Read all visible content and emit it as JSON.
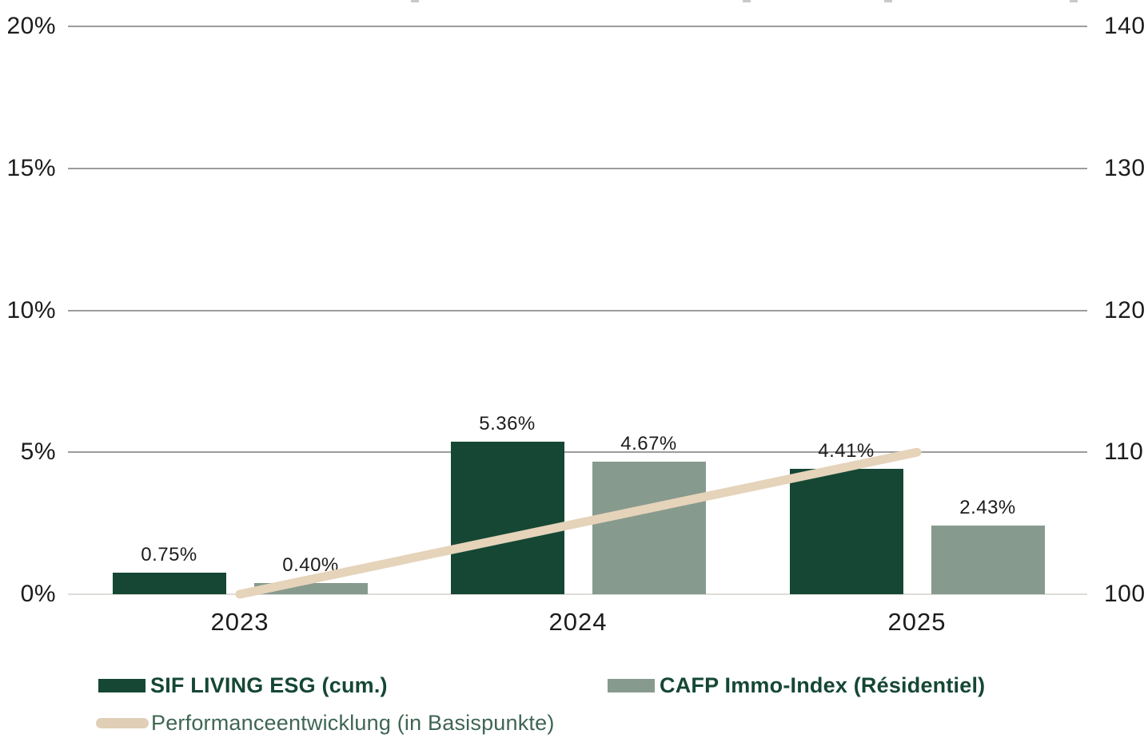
{
  "chart_data": {
    "type": "combo",
    "categories": [
      "2023",
      "2024",
      "2025"
    ],
    "series": [
      {
        "name": "SIF LIVING ESG (cum.)",
        "type": "bar",
        "axis": "left",
        "color": "#154734",
        "values": [
          0.75,
          5.36,
          4.41
        ],
        "labels": [
          "0.75%",
          "5.36%",
          "4.41%"
        ]
      },
      {
        "name": "CAFP Immo-Index (Résidentiel)",
        "type": "bar",
        "axis": "left",
        "color": "#879a8e",
        "values": [
          0.4,
          4.67,
          2.43
        ],
        "labels": [
          "0.40%",
          "4.67%",
          "2.43%"
        ]
      },
      {
        "name": "Performanceentwicklung (in Basispunkte)",
        "type": "line",
        "axis": "right",
        "color": "#e5d3ba",
        "values": [
          100,
          105,
          110
        ]
      }
    ],
    "left_axis": {
      "ticks": [
        "0%",
        "5%",
        "10%",
        "15%",
        "20%"
      ],
      "values": [
        0,
        5,
        10,
        15,
        20
      ],
      "range": [
        0,
        20
      ]
    },
    "right_axis": {
      "ticks": [
        "100",
        "110",
        "120",
        "130",
        "140"
      ],
      "values": [
        100,
        110,
        120,
        130,
        140
      ],
      "range": [
        100,
        140
      ]
    },
    "grid": true,
    "legend_position": "bottom",
    "title": "",
    "xlabel": "",
    "ylabel": ""
  },
  "legend": {
    "items": [
      {
        "label": "SIF LIVING ESG (cum.)",
        "swatch": "bar",
        "color": "#154734"
      },
      {
        "label": "CAFP Immo-Index (Résidentiel)",
        "swatch": "bar",
        "color": "#879a8e"
      },
      {
        "label": "Performanceentwicklung (in Basispunkte)",
        "swatch": "line",
        "color": "#e0cfb6"
      }
    ]
  },
  "colors": {
    "bar_primary": "#154734",
    "bar_secondary": "#879a8e",
    "line": "#e5d3ba",
    "gridline": "#9c9c9c",
    "gridline_zero": "#dedcd8",
    "text": "#1c1c1c"
  }
}
